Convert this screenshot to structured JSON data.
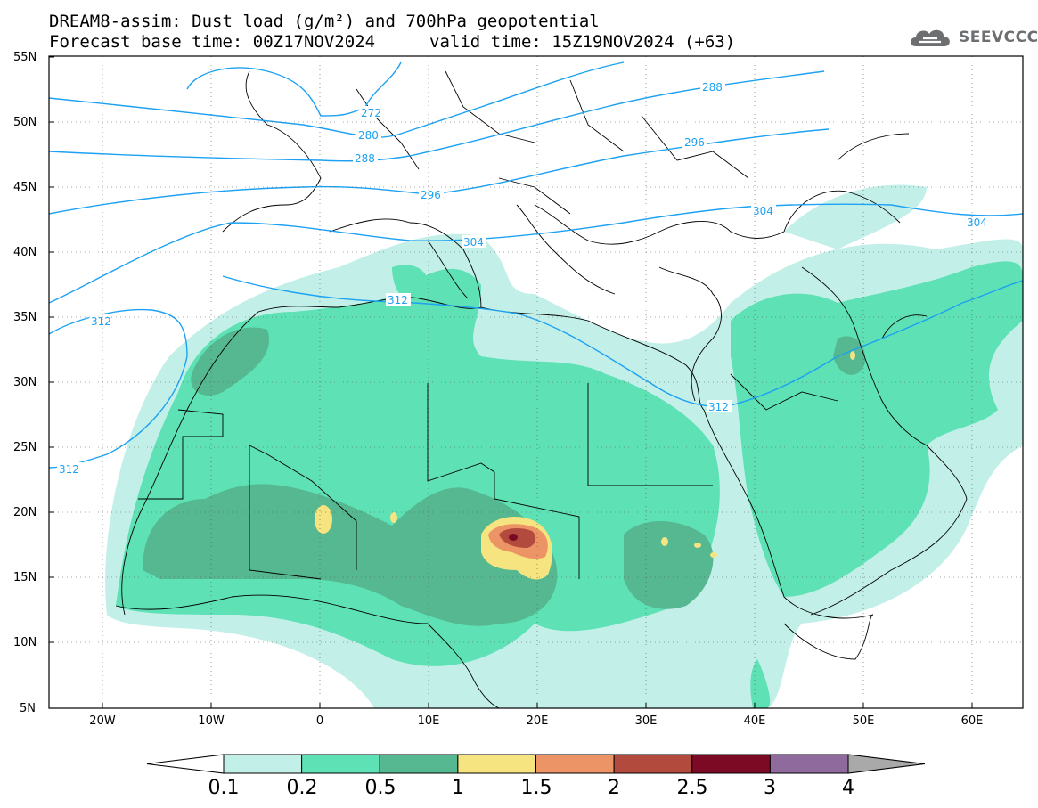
{
  "title": {
    "line1": "DREAM8-assim: Dust load (g/m²) and 700hPa geopotential",
    "line2": "Forecast base time: 00Z17NOV2024",
    "line2b": "valid time: 15Z19NOV2024 (+63)"
  },
  "logo": {
    "text": "SEEVCCC",
    "icon": "cloud-logo-icon"
  },
  "axes": {
    "lat_labels": [
      "55N",
      "50N",
      "45N",
      "40N",
      "35N",
      "30N",
      "25N",
      "20N",
      "15N",
      "10N",
      "5N"
    ],
    "lon_labels": [
      "20W",
      "10W",
      "0",
      "10E",
      "20E",
      "30E",
      "40E",
      "50E",
      "60E"
    ]
  },
  "contour_labels": [
    "272",
    "280",
    "288",
    "288",
    "296",
    "296",
    "304",
    "304",
    "304",
    "312",
    "312",
    "312",
    "312"
  ],
  "colorbar": {
    "ticks": [
      "0.1",
      "0.2",
      "0.5",
      "1",
      "1.5",
      "2",
      "2.5",
      "3",
      "4"
    ],
    "colors": [
      "#ffffff",
      "#c2f0e8",
      "#5ee1b5",
      "#55b890",
      "#f5e47f",
      "#ec9465",
      "#b24b3d",
      "#7d0a24",
      "#8e6a9d",
      "#a9a9a9"
    ]
  }
}
